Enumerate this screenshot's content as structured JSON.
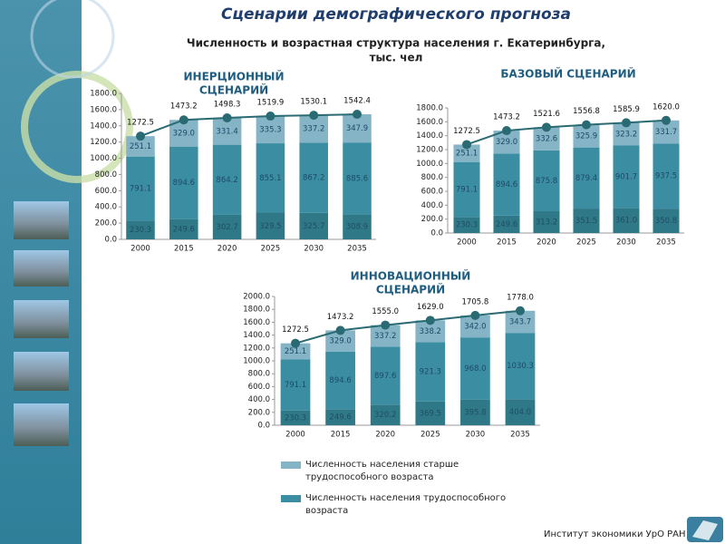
{
  "title": "Сценарии демографического прогноза",
  "subtitle": [
    "Численность и возрастная структура населения г. Екатеринбурга,",
    "тыс. чел"
  ],
  "footer": "Институт экономики УрО РАН",
  "chart_data": [
    {
      "type": "bar",
      "stacked": true,
      "title": [
        "ИНЕРЦИОННЫЙ",
        "СЦЕНАРИЙ"
      ],
      "categories": [
        "2000",
        "2015",
        "2020",
        "2025",
        "2030",
        "2035"
      ],
      "ylim": [
        0,
        1800
      ],
      "yticks": [
        {
          "value": 0,
          "label": "0.0"
        },
        {
          "value": 200,
          "label": "200.0"
        },
        {
          "value": 400,
          "label": "400.0"
        },
        {
          "value": 600,
          "label": "600.0"
        },
        {
          "value": 800,
          "label": "800.0"
        },
        {
          "value": 1000,
          "label": "1000.0"
        },
        {
          "value": 1200,
          "label": "1200.0"
        },
        {
          "value": 1400,
          "label": "1400.0"
        },
        {
          "value": 1600,
          "label": "1600.0"
        },
        {
          "value": 1800,
          "label": "1800.0"
        }
      ],
      "series": [
        {
          "color": "#2f7888",
          "values": [
            230.3,
            249.6,
            302.7,
            329.5,
            325.7,
            308.9
          ],
          "value_labels": [
            "230.3",
            "249.6",
            "302.7",
            "329.5",
            "325.7",
            "308.9"
          ]
        },
        {
          "color": "#3b8ea2",
          "values": [
            791.1,
            894.6,
            864.2,
            855.1,
            867.2,
            885.6
          ],
          "value_labels": [
            "791.1",
            "894.6",
            "864.2",
            "855.1",
            "867.2",
            "885.6"
          ]
        },
        {
          "color": "#84b4c6",
          "values": [
            251.1,
            329.0,
            331.4,
            335.3,
            337.2,
            347.9
          ],
          "value_labels": [
            "251.1",
            "329.0",
            "331.4",
            "335.3",
            "337.2",
            "347.9"
          ]
        }
      ],
      "totals": {
        "color": "#2a6a72",
        "values": [
          1272.5,
          1473.2,
          1498.3,
          1519.9,
          1530.1,
          1542.4
        ],
        "value_labels": [
          "1272.5",
          "1473.2",
          "1498.3",
          "1519.9",
          "1530.1",
          "1542.4"
        ]
      }
    },
    {
      "type": "bar",
      "stacked": true,
      "title": "БАЗОВЫЙ СЦЕНАРИЙ",
      "categories": [
        "2000",
        "2015",
        "2020",
        "2025",
        "2030",
        "2035"
      ],
      "ylim": [
        0,
        1800
      ],
      "yticks": [
        {
          "value": 0,
          "label": "0.0"
        },
        {
          "value": 200,
          "label": "200.0"
        },
        {
          "value": 400,
          "label": "400.0"
        },
        {
          "value": 600,
          "label": "600.0"
        },
        {
          "value": 800,
          "label": "800.0"
        },
        {
          "value": 1000,
          "label": "1000.0"
        },
        {
          "value": 1200,
          "label": "1200.0"
        },
        {
          "value": 1400,
          "label": "1400.0"
        },
        {
          "value": 1600,
          "label": "1600.0"
        },
        {
          "value": 1800,
          "label": "1800.0"
        }
      ],
      "series": [
        {
          "color": "#2f7888",
          "values": [
            230.3,
            249.6,
            313.2,
            351.5,
            361.0,
            350.8
          ],
          "value_labels": [
            "230.3",
            "249.6",
            "313.2",
            "351.5",
            "361.0",
            "350.8"
          ]
        },
        {
          "color": "#3b8ea2",
          "values": [
            791.1,
            894.6,
            875.8,
            879.4,
            901.7,
            937.5
          ],
          "value_labels": [
            "791.1",
            "894.6",
            "875.8",
            "879.4",
            "901.7",
            "937.5"
          ]
        },
        {
          "color": "#84b4c6",
          "values": [
            251.1,
            329.0,
            332.6,
            325.9,
            323.2,
            331.7
          ],
          "value_labels": [
            "251.1",
            "329.0",
            "332.6",
            "325.9",
            "323.2",
            "331.7"
          ]
        }
      ],
      "totals": {
        "color": "#2a6a72",
        "values": [
          1272.5,
          1473.2,
          1521.6,
          1556.8,
          1585.9,
          1620.0
        ],
        "value_labels": [
          "1272.5",
          "1473.2",
          "1521.6",
          "1556.8",
          "1585.9",
          "1620.0"
        ]
      }
    },
    {
      "type": "bar",
      "stacked": true,
      "title": [
        "ИННОВАЦИОННЫЙ",
        "СЦЕНАРИЙ"
      ],
      "categories": [
        "2000",
        "2015",
        "2020",
        "2025",
        "2030",
        "2035"
      ],
      "ylim": [
        0,
        2000
      ],
      "yticks": [
        {
          "value": 0,
          "label": "0.0"
        },
        {
          "value": 200,
          "label": "200.0"
        },
        {
          "value": 400,
          "label": "400.0"
        },
        {
          "value": 600,
          "label": "600.0"
        },
        {
          "value": 800,
          "label": "800.0"
        },
        {
          "value": 1000,
          "label": "1000.0"
        },
        {
          "value": 1200,
          "label": "1200.0"
        },
        {
          "value": 1400,
          "label": "1400.0"
        },
        {
          "value": 1600,
          "label": "1600.0"
        },
        {
          "value": 1800,
          "label": "1800.0"
        },
        {
          "value": 2000,
          "label": "2000.0"
        }
      ],
      "series": [
        {
          "color": "#2f7888",
          "values": [
            230.3,
            249.6,
            320.2,
            369.5,
            395.8,
            404.0
          ],
          "value_labels": [
            "230.3",
            "249.6",
            "320.2",
            "369.5",
            "395.8",
            "404.0"
          ]
        },
        {
          "name": "Численность населения трудоспособного возраста",
          "color": "#3b8ea2",
          "values": [
            791.1,
            894.6,
            897.6,
            921.3,
            968.0,
            1030.3
          ],
          "value_labels": [
            "791.1",
            "894.6",
            "897.6",
            "921.3",
            "968.0",
            "1030.3"
          ]
        },
        {
          "name": "Численность населения старше трудоспособного возраста",
          "color": "#84b4c6",
          "values": [
            251.1,
            329.0,
            337.2,
            338.2,
            342.0,
            343.7
          ],
          "value_labels": [
            "251.1",
            "329.0",
            "337.2",
            "338.2",
            "342.0",
            "343.7"
          ]
        }
      ],
      "totals": {
        "color": "#2a6a72",
        "values": [
          1272.5,
          1473.2,
          1555.0,
          1629.0,
          1705.8,
          1778.0
        ],
        "value_labels": [
          "1272.5",
          "1473.2",
          "1555.0",
          "1629.0",
          "1705.8",
          "1778.0"
        ]
      }
    }
  ]
}
